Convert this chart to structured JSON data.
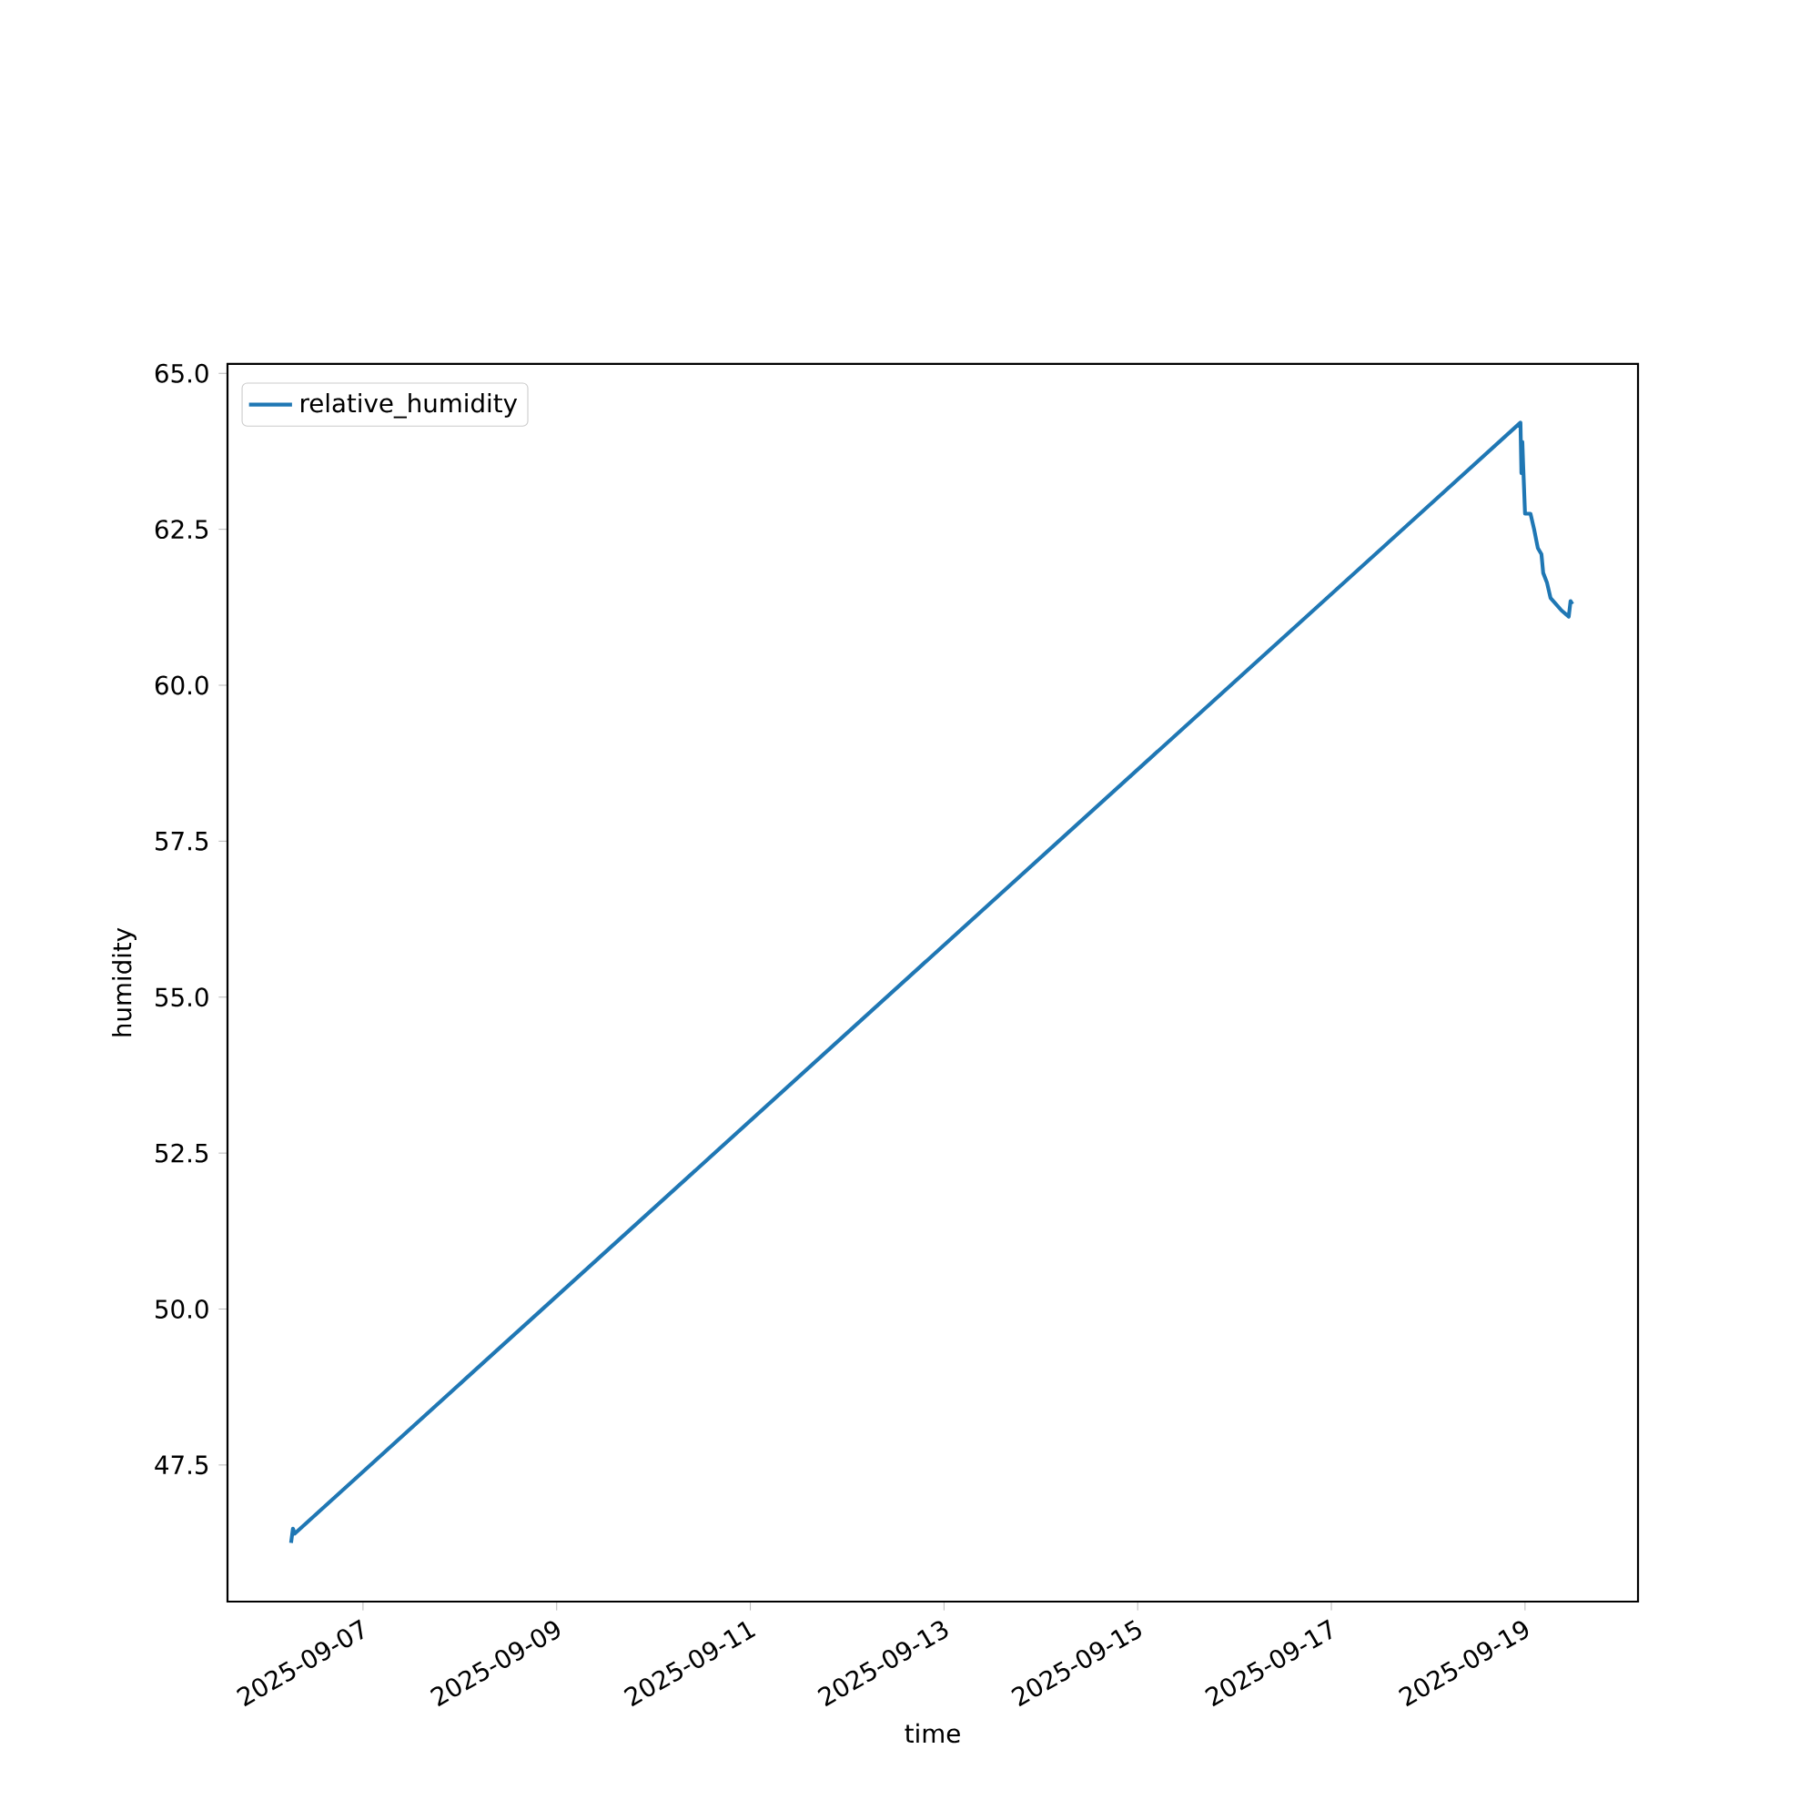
{
  "chart_data": {
    "type": "line",
    "xlabel": "time",
    "ylabel": "humidity",
    "x": [
      "2025-09-06T06:10",
      "2025-09-06T06:38",
      "2025-09-06T07:05",
      "2025-09-18T22:52",
      "2025-09-18T23:06",
      "2025-09-18T23:20",
      "2025-09-18T23:33",
      "2025-09-19T00:00",
      "2025-09-19T01:21",
      "2025-09-19T02:15",
      "2025-09-19T03:10",
      "2025-09-19T04:04",
      "2025-09-19T04:30",
      "2025-09-19T05:25",
      "2025-09-19T06:19",
      "2025-09-19T07:40",
      "2025-09-19T09:01",
      "2025-09-19T10:50",
      "2025-09-19T11:17",
      "2025-09-19T11:44"
    ],
    "series": [
      {
        "name": "relative_humidity",
        "color": "#1f77b4",
        "values": [
          46.25,
          46.48,
          46.4,
          64.21,
          63.4,
          63.9,
          63.5,
          62.75,
          62.75,
          62.5,
          62.2,
          62.1,
          61.8,
          61.65,
          61.4,
          61.3,
          61.2,
          61.1,
          61.35,
          61.3
        ]
      }
    ],
    "xlim": [
      "2025-09-05T14:25",
      "2025-09-20T04:00"
    ],
    "xticks": [
      "2025-09-07",
      "2025-09-09",
      "2025-09-11",
      "2025-09-13",
      "2025-09-15",
      "2025-09-17",
      "2025-09-19"
    ],
    "ylim": [
      45.31,
      65.15
    ],
    "yticks": [
      47.5,
      {
        "value": 50,
        "label": "50.0"
      },
      52.5,
      {
        "value": 55,
        "label": "55.0"
      },
      57.5,
      {
        "value": 60,
        "label": "60.0"
      },
      62.5,
      {
        "value": 65,
        "label": "65.0"
      }
    ],
    "legend": "top left",
    "grid": false,
    "marker": "none",
    "line_style": "solid"
  }
}
